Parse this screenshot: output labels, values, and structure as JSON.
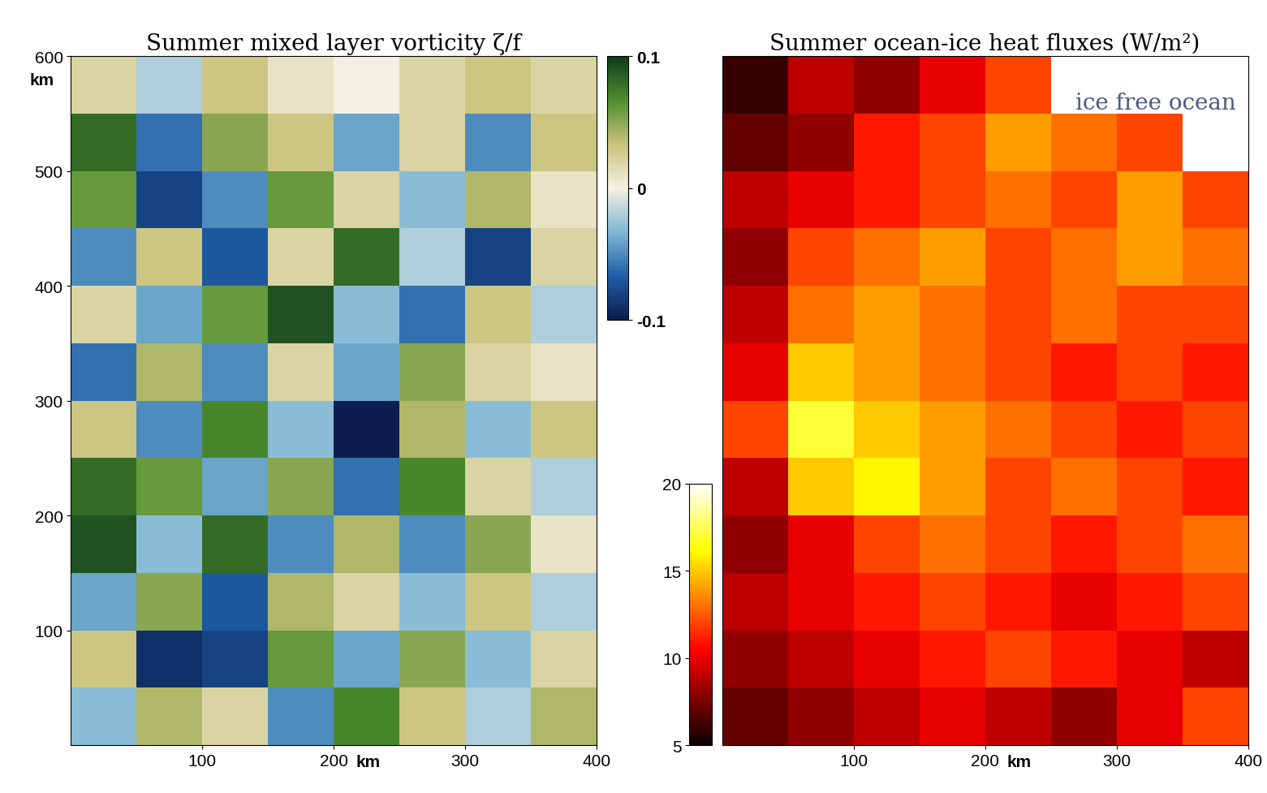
{
  "chart_data": [
    {
      "type": "heatmap",
      "title": "Summer mixed layer vorticity ζ/f",
      "xlabel": "km",
      "ylabel": "km",
      "xlim": [
        0,
        400
      ],
      "xticks": [
        100,
        200,
        300,
        400
      ],
      "ylim": [
        0,
        600
      ],
      "yticks": [
        100,
        200,
        300,
        400,
        500,
        600
      ],
      "cells": [
        [
          -0.03,
          0.04,
          0.02,
          -0.05,
          0.07,
          0.03,
          -0.02,
          0.04
        ],
        [
          0.03,
          -0.09,
          -0.08,
          0.06,
          -0.04,
          0.05,
          -0.03,
          0.02
        ],
        [
          -0.04,
          0.05,
          -0.07,
          0.04,
          0.02,
          -0.03,
          0.03,
          -0.02
        ],
        [
          0.09,
          -0.03,
          0.08,
          -0.05,
          0.04,
          -0.05,
          0.05,
          0.01
        ],
        [
          0.08,
          0.06,
          -0.04,
          0.05,
          -0.06,
          0.07,
          0.02,
          -0.02
        ],
        [
          0.03,
          -0.05,
          0.07,
          -0.03,
          -0.1,
          0.04,
          -0.03,
          0.03
        ],
        [
          -0.06,
          0.04,
          -0.05,
          0.02,
          -0.04,
          0.05,
          0.02,
          0.01
        ],
        [
          0.02,
          -0.04,
          0.06,
          0.09,
          -0.03,
          -0.06,
          0.03,
          -0.02
        ],
        [
          -0.05,
          0.03,
          -0.07,
          0.02,
          0.08,
          -0.02,
          -0.08,
          0.02
        ],
        [
          0.06,
          -0.08,
          -0.05,
          0.06,
          0.02,
          -0.03,
          0.04,
          0.01
        ],
        [
          0.08,
          -0.06,
          0.05,
          0.03,
          -0.04,
          0.02,
          -0.05,
          0.03
        ],
        [
          0.02,
          -0.02,
          0.03,
          0.01,
          0.0,
          0.02,
          0.03,
          0.02
        ]
      ],
      "colorbar": {
        "range": [
          -0.1,
          0.1
        ],
        "ticks": [
          -0.1,
          0,
          0.1
        ]
      }
    },
    {
      "type": "heatmap",
      "title": "Summer ocean-ice heat fluxes (W/m²)",
      "xlabel": "km",
      "annotation": "ice free ocean",
      "tick_labels": "x",
      "xlim": [
        0,
        400
      ],
      "xticks": [
        100,
        200,
        300,
        400
      ],
      "ylim": [
        0,
        600
      ],
      "cells": [
        [
          7,
          8,
          9,
          10,
          9,
          8,
          10,
          12
        ],
        [
          8,
          9,
          10,
          11,
          12,
          11,
          10,
          9
        ],
        [
          9,
          10,
          11,
          12,
          11,
          10,
          11,
          12
        ],
        [
          8,
          10,
          12,
          13,
          12,
          11,
          12,
          13
        ],
        [
          9,
          15,
          16,
          14,
          12,
          13,
          12,
          11
        ],
        [
          12,
          17,
          15,
          14,
          13,
          12,
          11,
          12
        ],
        [
          10,
          15,
          14,
          13,
          12,
          11,
          12,
          11
        ],
        [
          9,
          13,
          14,
          13,
          12,
          13,
          12,
          12
        ],
        [
          8,
          12,
          13,
          14,
          12,
          13,
          14,
          13
        ],
        [
          9,
          10,
          11,
          12,
          13,
          12,
          14,
          12
        ],
        [
          7,
          8,
          11,
          12,
          14,
          13,
          12,
          null
        ],
        [
          6,
          9,
          8,
          10,
          12,
          null,
          null,
          null
        ]
      ],
      "colorbar": {
        "range": [
          5,
          20
        ],
        "ticks": [
          5,
          10,
          15,
          20
        ]
      }
    }
  ]
}
